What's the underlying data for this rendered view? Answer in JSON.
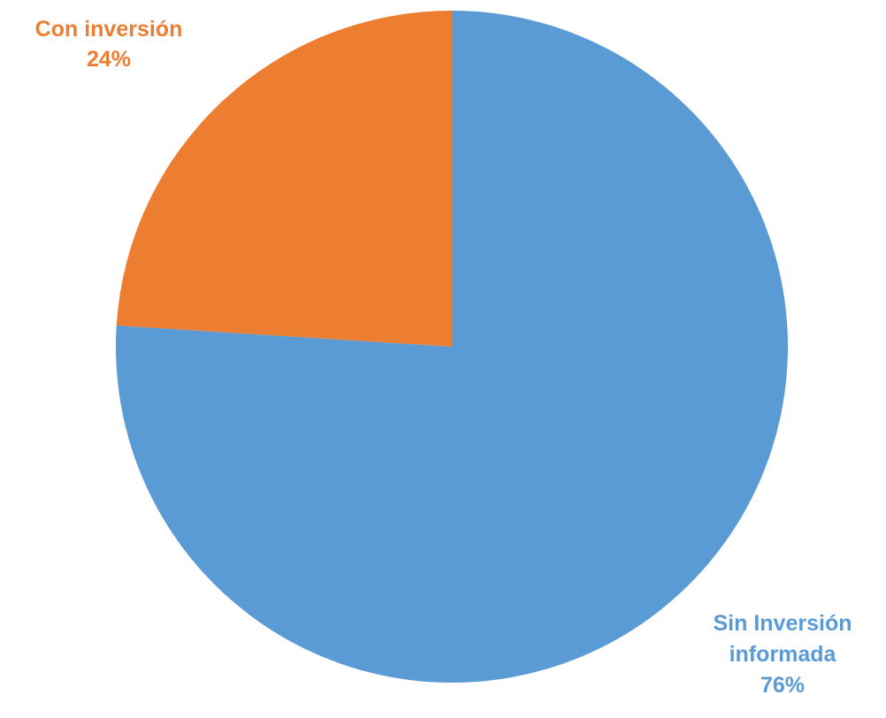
{
  "chart_data": {
    "type": "pie",
    "title": "",
    "categories": [
      "Sin Inversión informada",
      "Con inversión"
    ],
    "values": [
      76,
      24
    ],
    "colors": [
      "#5b9bd5",
      "#ed7d31"
    ],
    "labels": {
      "sin_inversion": {
        "line1": "Sin Inversión",
        "line2": "informada",
        "pct": "76%",
        "color": "#5b9bd5"
      },
      "con_inversion": {
        "line1": "Con inversión",
        "pct": "24%",
        "color": "#ed7d31"
      }
    },
    "legend": "none",
    "start_angle_deg": 0,
    "direction": "clockwise"
  }
}
